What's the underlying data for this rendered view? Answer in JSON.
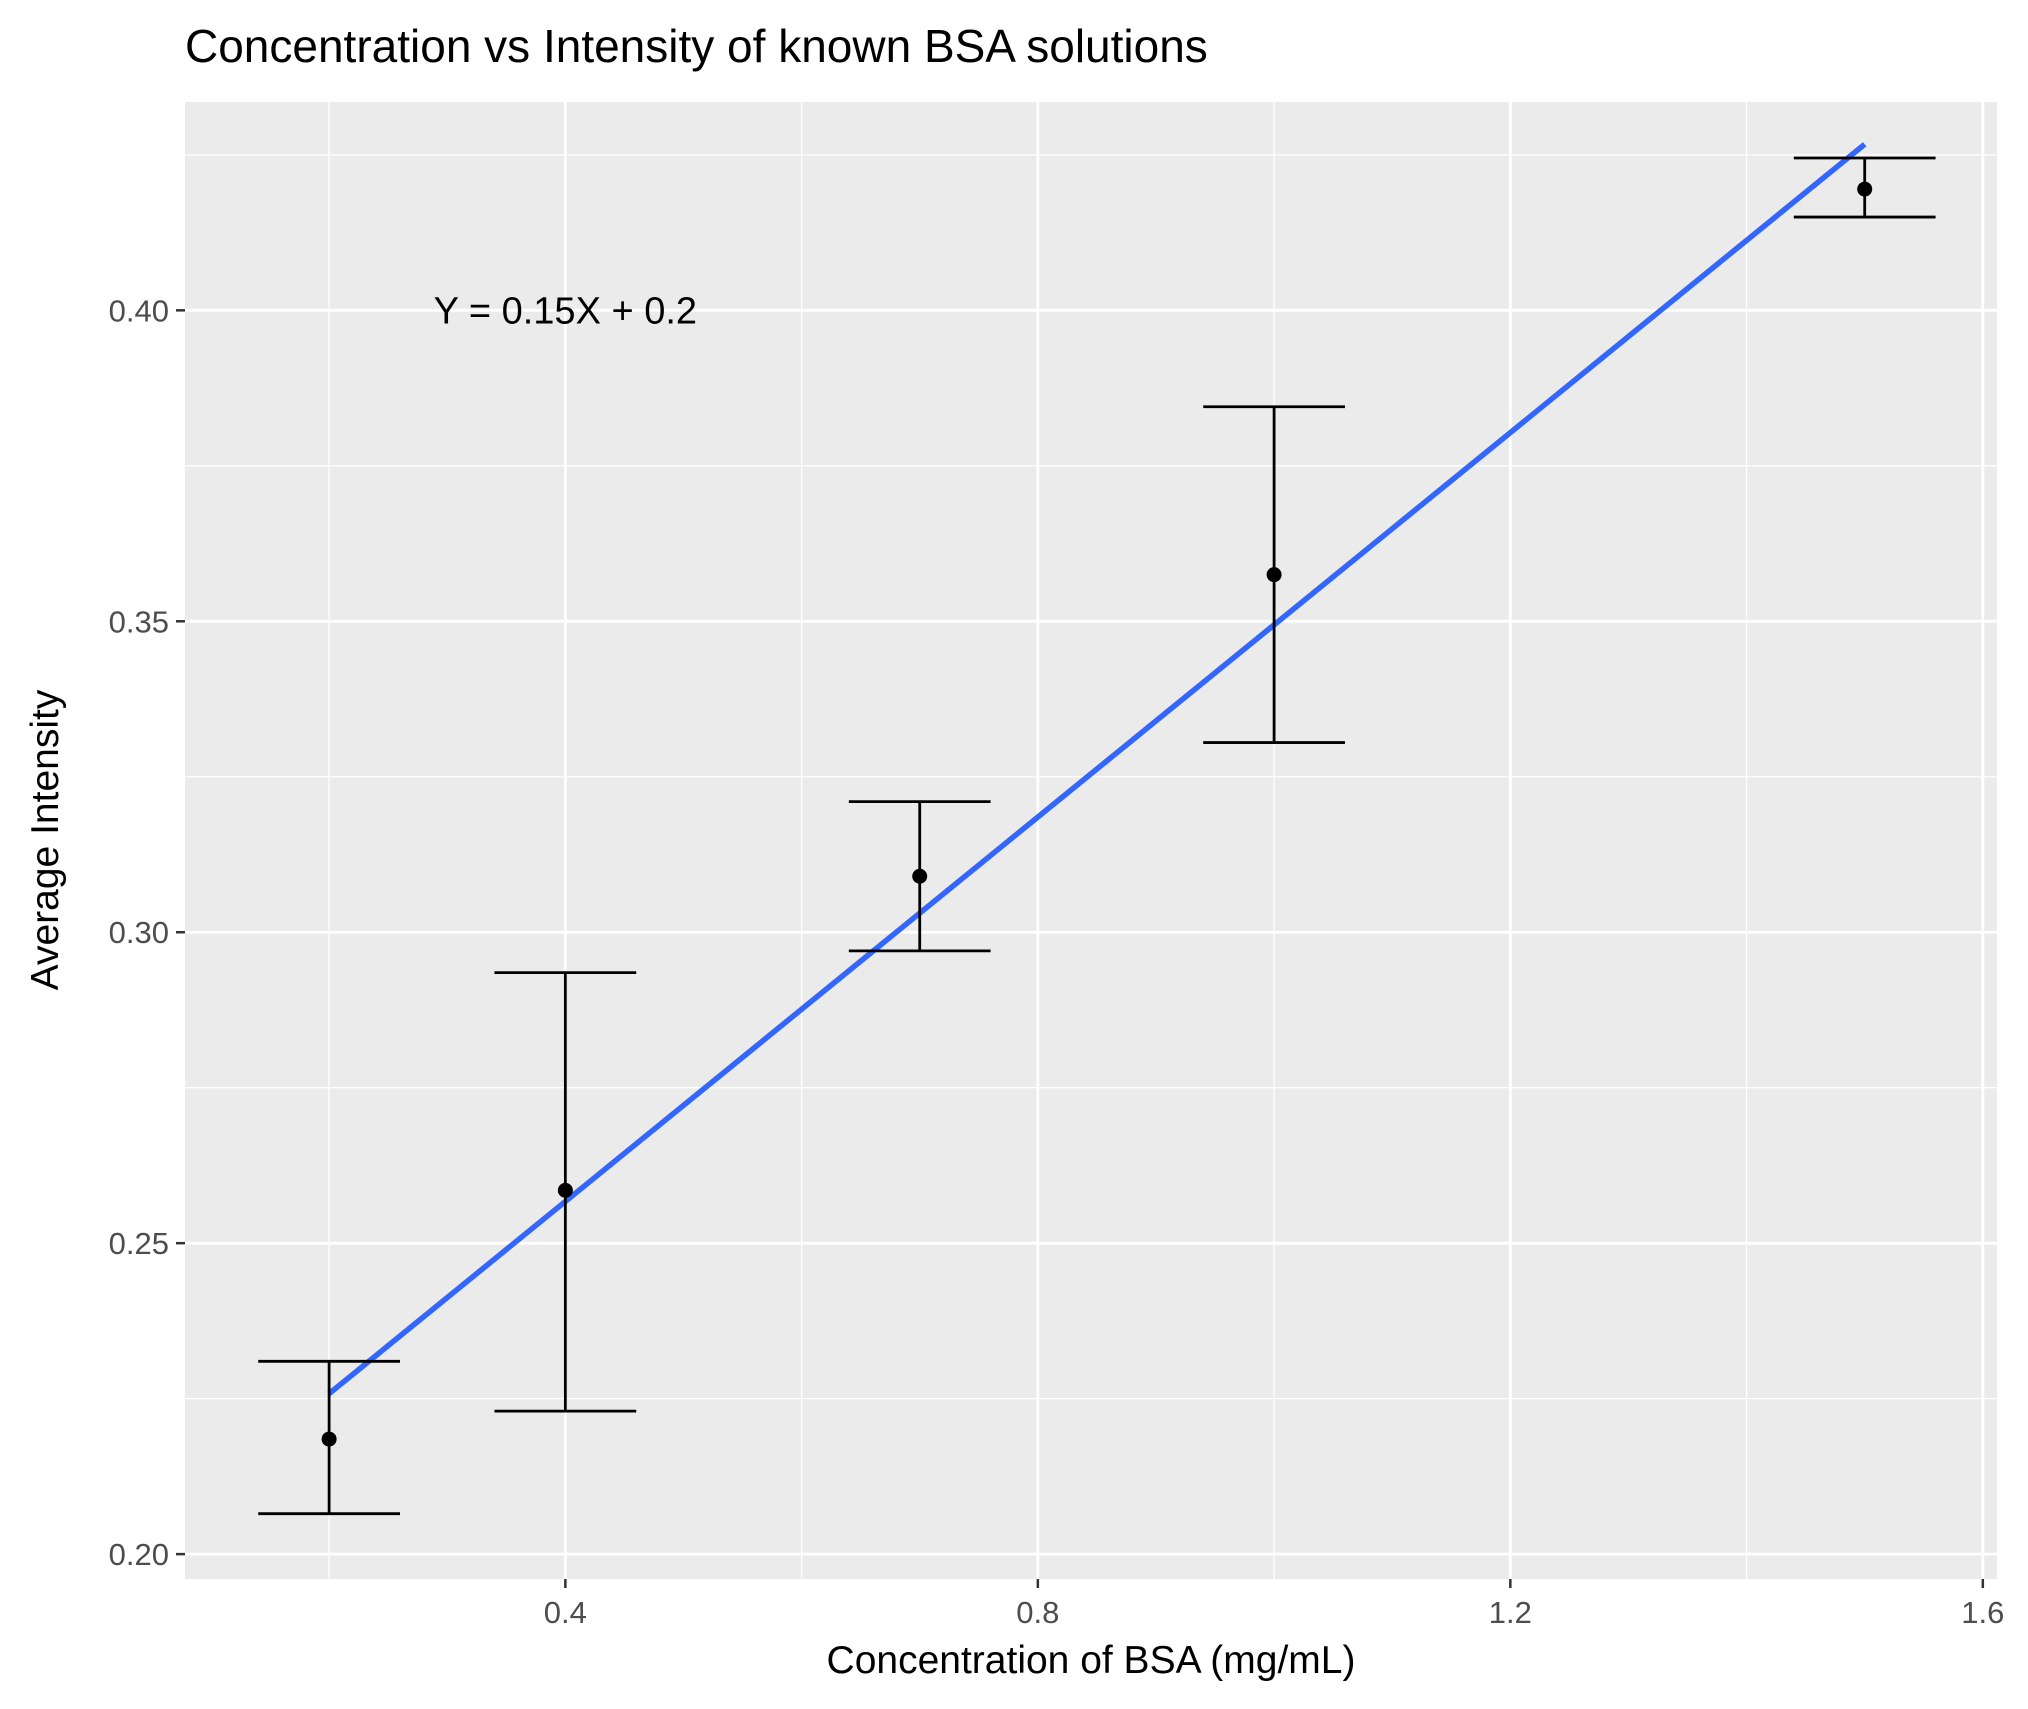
{
  "chart_data": {
    "type": "scatter",
    "title": "Concentration vs Intensity of known BSA solutions",
    "xlabel": "Concentration of BSA (mg/mL)",
    "ylabel": "Average Intensity",
    "xlim": [
      0.078,
      1.612
    ],
    "ylim": [
      0.196,
      0.4335
    ],
    "x_ticks": [
      0.4,
      0.8,
      1.2,
      1.6
    ],
    "x_tick_labels": [
      "0.4",
      "0.8",
      "1.2",
      "1.6"
    ],
    "x_minor_ticks": [
      0.2,
      0.6,
      1.0,
      1.4
    ],
    "y_ticks": [
      0.2,
      0.25,
      0.3,
      0.35,
      0.4
    ],
    "y_tick_labels": [
      "0.20",
      "0.25",
      "0.30",
      "0.35",
      "0.40"
    ],
    "y_minor_ticks": [
      0.225,
      0.275,
      0.325,
      0.375,
      0.425
    ],
    "grid": true,
    "points": [
      {
        "x": 0.2,
        "y": 0.2185,
        "ymin": 0.2065,
        "ymax": 0.231
      },
      {
        "x": 0.4,
        "y": 0.2585,
        "ymin": 0.223,
        "ymax": 0.2935
      },
      {
        "x": 0.7,
        "y": 0.309,
        "ymin": 0.297,
        "ymax": 0.321
      },
      {
        "x": 1.0,
        "y": 0.3575,
        "ymin": 0.3305,
        "ymax": 0.3845
      },
      {
        "x": 1.5,
        "y": 0.4195,
        "ymin": 0.415,
        "ymax": 0.4245
      }
    ],
    "fit_line": {
      "x": [
        0.2,
        1.5
      ],
      "y": [
        0.2258,
        0.4267
      ]
    },
    "annotation": {
      "text": "Y = 0.15X + 0.2",
      "x": 0.4,
      "y": 0.4
    },
    "colors": {
      "panel": "#ebebeb",
      "grid": "#ffffff",
      "points": "#000000",
      "fit_line": "#3366ff"
    }
  }
}
